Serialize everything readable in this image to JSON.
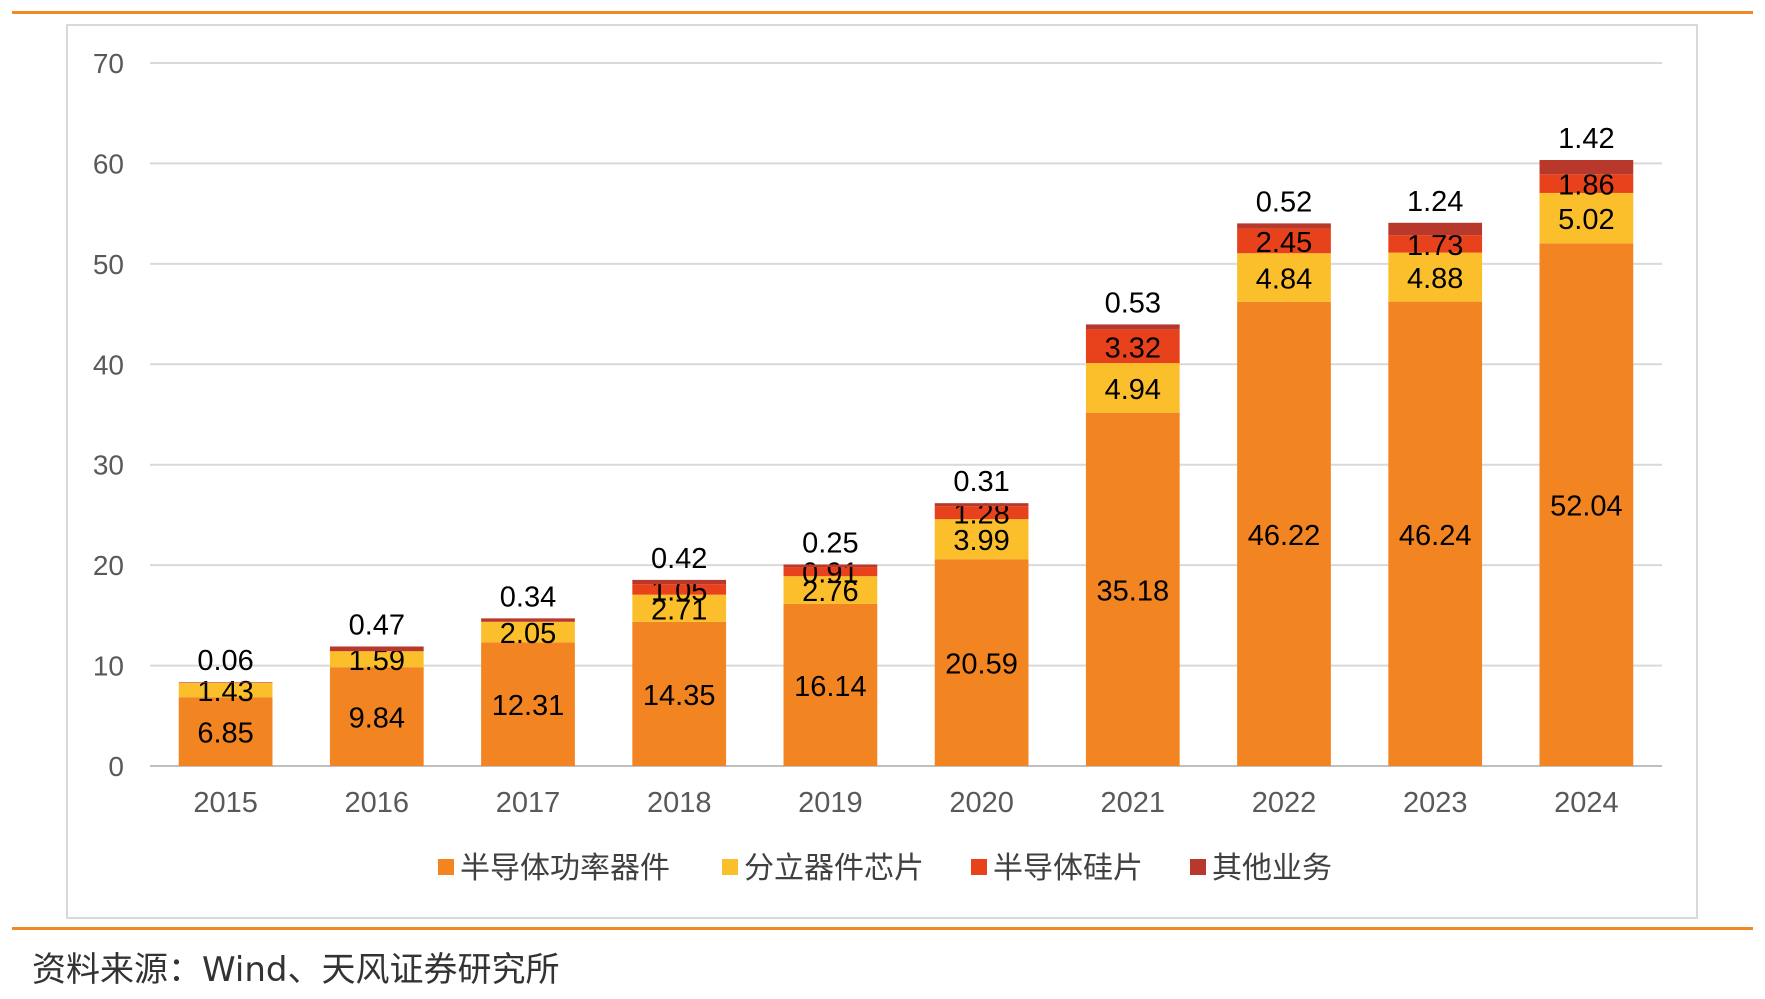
{
  "source_note": "资料来源：Wind、天风证券研究所",
  "chart_data": {
    "type": "bar",
    "stacked": true,
    "categories": [
      "2015",
      "2016",
      "2017",
      "2018",
      "2019",
      "2020",
      "2021",
      "2022",
      "2023",
      "2024"
    ],
    "series": [
      {
        "name": "半导体功率器件",
        "color": "#f28421",
        "values": [
          6.85,
          9.84,
          12.31,
          14.35,
          16.14,
          20.59,
          35.18,
          46.22,
          46.24,
          52.04
        ]
      },
      {
        "name": "分立器件芯片",
        "color": "#fbbf2c",
        "values": [
          1.43,
          1.59,
          2.05,
          2.71,
          2.76,
          3.99,
          4.94,
          4.84,
          4.88,
          5.02
        ]
      },
      {
        "name": "半导体硅片",
        "color": "#e8421c",
        "values": [
          null,
          null,
          null,
          1.05,
          0.91,
          1.28,
          3.32,
          2.45,
          1.73,
          1.86
        ]
      },
      {
        "name": "其他业务",
        "color": "#b8392c",
        "values": [
          0.06,
          0.47,
          0.34,
          0.42,
          0.25,
          0.31,
          0.53,
          0.52,
          1.24,
          1.42
        ]
      }
    ],
    "title": "",
    "xlabel": "",
    "ylabel": "",
    "ylim": [
      0,
      70
    ],
    "yticks": [
      "0",
      "10",
      "20",
      "30",
      "40",
      "50",
      "60",
      "70"
    ],
    "grid": true,
    "legend_position": "bottom"
  }
}
